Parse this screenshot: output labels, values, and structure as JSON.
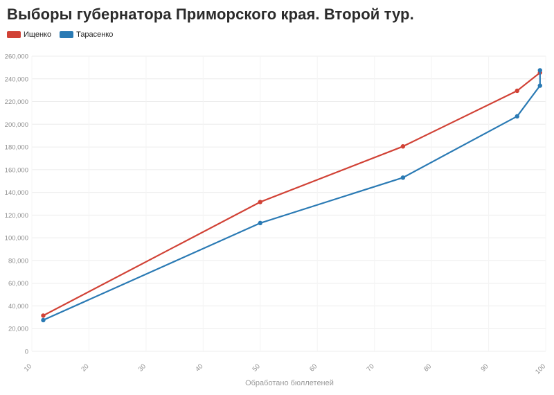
{
  "chart_data": {
    "type": "line",
    "title": "Выборы губернатора Приморского края. Второй тур.",
    "xlabel": "Обработано бюллетеней",
    "ylabel": "",
    "xlim": [
      10,
      100
    ],
    "ylim": [
      0,
      260000
    ],
    "xticks": [
      "10",
      "20",
      "30",
      "40",
      "50",
      "60",
      "70",
      "80",
      "90",
      "100"
    ],
    "yticks": [
      "0",
      "20,000",
      "40,000",
      "60,000",
      "80,000",
      "100,000",
      "120,000",
      "140,000",
      "160,000",
      "180,000",
      "200,000",
      "220,000",
      "240,000",
      "260,000"
    ],
    "grid": true,
    "legend_position": "top-left",
    "series": [
      {
        "name": "Ищенко",
        "color": "#d14236",
        "points": [
          [
            12,
            31500
          ],
          [
            50,
            131500
          ],
          [
            75,
            180500
          ],
          [
            95,
            229500
          ],
          [
            99,
            245500
          ]
        ]
      },
      {
        "name": "Тарасенко",
        "color": "#2a7ab4",
        "points": [
          [
            12,
            27500
          ],
          [
            50,
            113000
          ],
          [
            75,
            153000
          ],
          [
            95,
            207000
          ],
          [
            99,
            234000
          ],
          [
            99,
            247500
          ]
        ]
      }
    ]
  }
}
